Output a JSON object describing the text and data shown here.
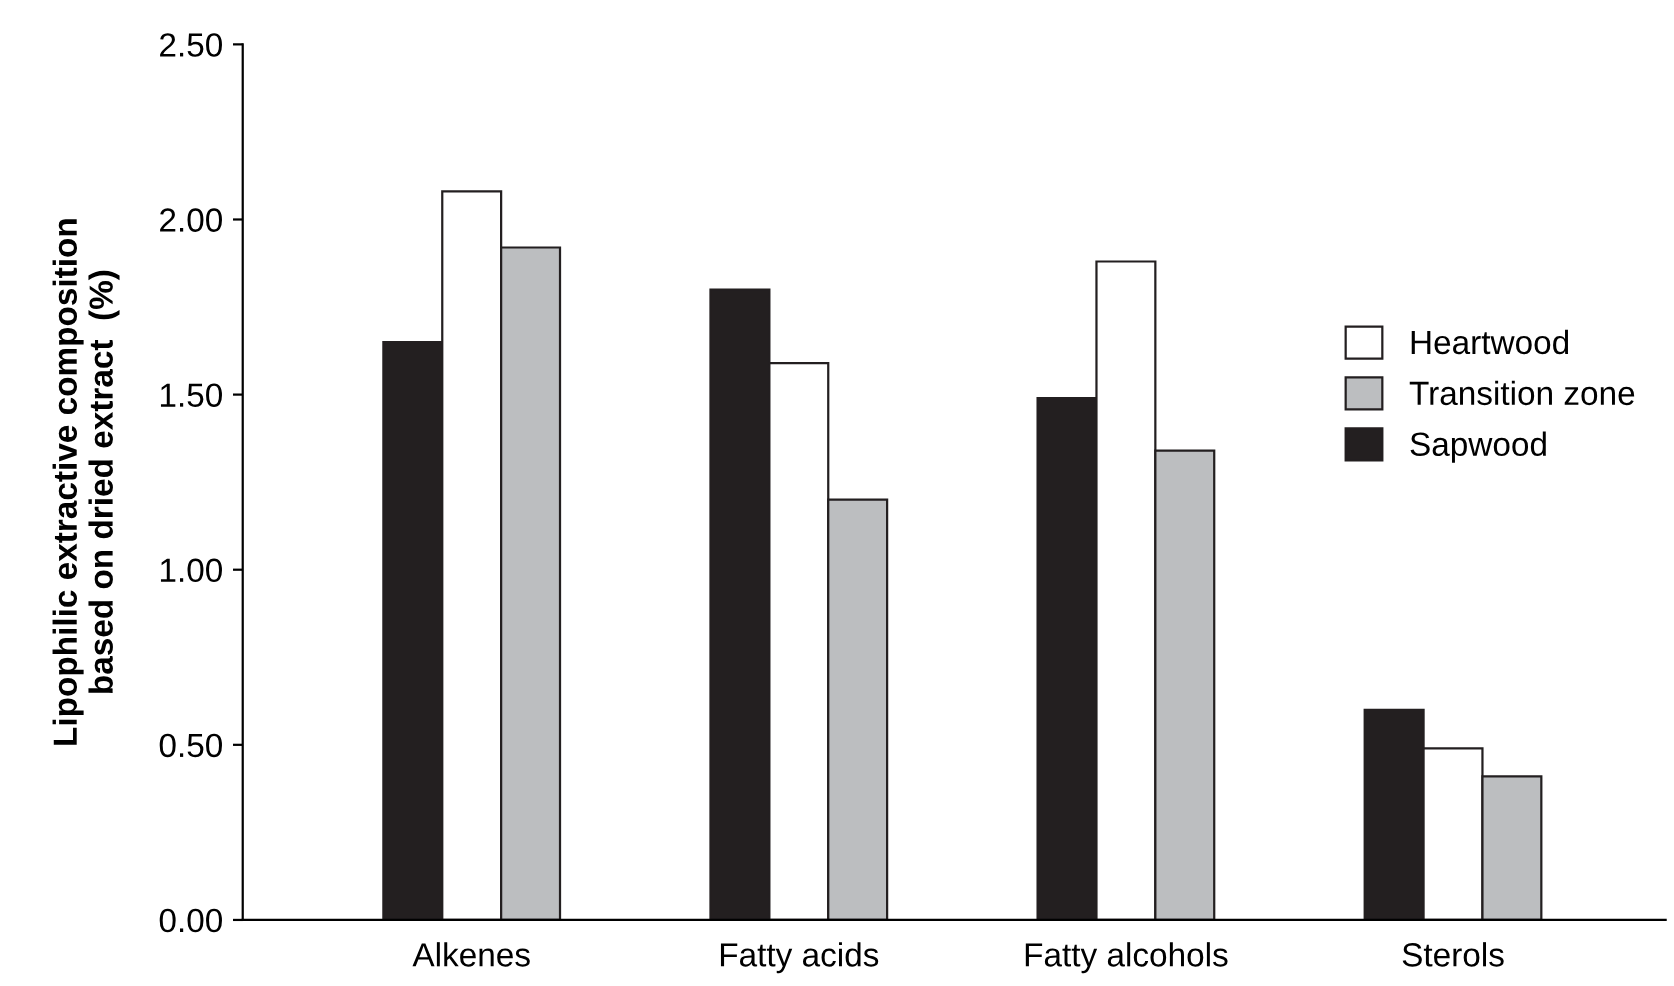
{
  "chart_data": {
    "type": "bar",
    "ylabel": "Lipophilic extractive composition\nbased on dried extract  (%)",
    "categories": [
      "Alkenes",
      "Fatty acids",
      "Fatty alcohols",
      "Sterols"
    ],
    "series": [
      {
        "name": "Sapwood",
        "color": "#231f20",
        "values": [
          1.65,
          1.8,
          1.49,
          0.6
        ]
      },
      {
        "name": "Heartwood",
        "color": "#ffffff",
        "values": [
          2.08,
          1.59,
          1.88,
          0.49
        ]
      },
      {
        "name": "Transition zone",
        "color": "#bcbec0",
        "values": [
          1.92,
          1.2,
          1.34,
          0.41
        ]
      }
    ],
    "ylim": [
      0,
      2.5
    ],
    "yticks": [
      {
        "value": 0,
        "label": "0.00"
      },
      {
        "value": 0.5,
        "label": "0.50"
      },
      {
        "value": 1,
        "label": "1.00"
      },
      {
        "value": 1.5,
        "label": "1.50"
      },
      {
        "value": 2,
        "label": "2.00"
      },
      {
        "value": 2.5,
        "label": "2.50"
      }
    ],
    "grid": false,
    "legend": "right"
  }
}
